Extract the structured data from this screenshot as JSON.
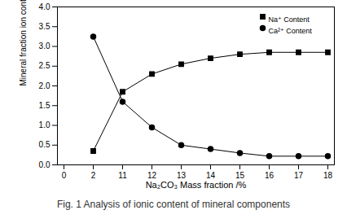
{
  "chart_data": {
    "type": "line",
    "title": "Fig. 1 Analysis of ionic content of mineral components",
    "x_label": "Na₂CO₃ Mass fraction /%",
    "y_label": "Mineral fraction ion content /%",
    "categories": [
      "0",
      "2",
      "11",
      "12",
      "13",
      "14",
      "15",
      "16",
      "17",
      "18"
    ],
    "series": [
      {
        "name": "Na⁺ Content",
        "color": "#000000",
        "marker": "square",
        "line_style": "solid",
        "values": [
          null,
          0.35,
          1.85,
          2.3,
          2.55,
          2.7,
          2.8,
          2.85,
          2.85,
          2.85
        ]
      },
      {
        "name": "Ca²⁺ Content",
        "color": "#000000",
        "marker": "circle",
        "line_style": "solid",
        "values": [
          null,
          3.25,
          1.6,
          0.95,
          0.5,
          0.4,
          0.3,
          0.22,
          0.22,
          0.22
        ]
      }
    ],
    "ylim": [
      0,
      4
    ],
    "yticks": [
      {
        "value": 0,
        "label": "0.0"
      },
      0.5,
      {
        "value": 1,
        "label": "1.0"
      },
      1.5,
      {
        "value": 2,
        "label": "2.0"
      },
      2.5,
      {
        "value": 3,
        "label": "3.0"
      },
      3.5,
      {
        "value": 4,
        "label": "4.0"
      }
    ],
    "grid": false,
    "legend": "upper right"
  }
}
